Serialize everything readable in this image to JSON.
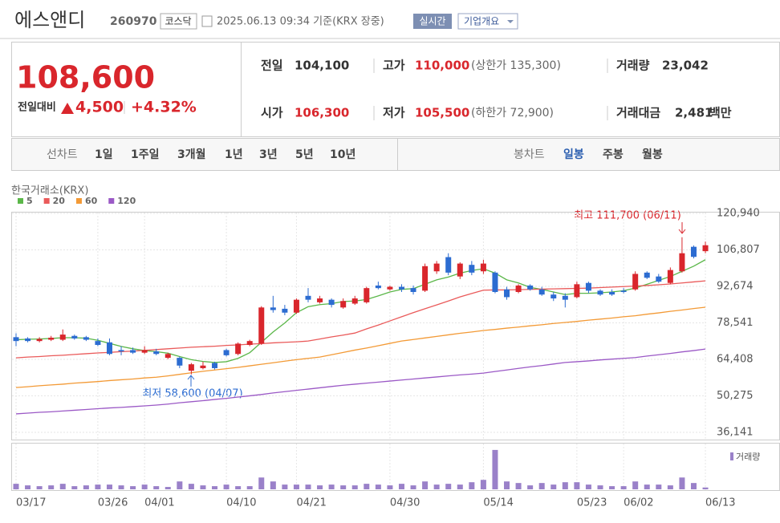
{
  "header": {
    "name": "에스앤디",
    "code": "260970",
    "market": "코스닥",
    "timestamp": "2025.06.13 09:34 기준(KRX 장중)",
    "realtime": "실시간",
    "company_info": "기업개요"
  },
  "quote": {
    "price": "108,600",
    "change_label": "전일대비",
    "change": "4,500",
    "change_pct": "+4.32%",
    "items": [
      {
        "label": "전일",
        "value": "104,100"
      },
      {
        "label": "고가",
        "value": "110,000",
        "note": "(상한가 135,300)"
      },
      {
        "label": "거래량",
        "value": "23,042"
      },
      {
        "label": "시가",
        "value": "106,300"
      },
      {
        "label": "저가",
        "value": "105,500",
        "note": "(하한가 72,900)"
      },
      {
        "label": "거래대금",
        "value": "2,481",
        "unit": "백만"
      }
    ]
  },
  "tabs": {
    "line_chart": "선차트",
    "periods": [
      "1일",
      "1주일",
      "3개월",
      "1년",
      "3년",
      "5년",
      "10년"
    ],
    "candle_chart": "봉차트",
    "candle_periods": [
      "일봉",
      "주봉",
      "월봉"
    ]
  },
  "chart_data": {
    "type": "candlestick",
    "source": "한국거래소(KRX)",
    "categories": [
      "03/17",
      null,
      null,
      null,
      null,
      null,
      null,
      "03/26",
      null,
      null,
      null,
      "04/01",
      null,
      null,
      null,
      null,
      null,
      null,
      "04/10",
      null,
      null,
      null,
      null,
      null,
      "04/21",
      null,
      null,
      null,
      null,
      null,
      null,
      null,
      "04/30",
      null,
      null,
      null,
      null,
      null,
      null,
      null,
      "05/14",
      null,
      null,
      null,
      null,
      null,
      null,
      null,
      "05/23",
      null,
      null,
      null,
      "06/02",
      null,
      null,
      null,
      null,
      null,
      null,
      "06/13"
    ],
    "open": [
      73000,
      72500,
      71500,
      72000,
      72000,
      73500,
      73000,
      71500,
      71000,
      68000,
      68000,
      67000,
      67500,
      65000,
      65000,
      60000,
      61000,
      63000,
      68000,
      66500,
      70000,
      70500,
      84500,
      84000,
      82500,
      89000,
      86500,
      87500,
      84500,
      86000,
      86500,
      93000,
      91500,
      92500,
      92000,
      91000,
      98500,
      104000,
      96500,
      101000,
      98500,
      98000,
      91500,
      90500,
      93000,
      91500,
      89500,
      89000,
      88500,
      94000,
      91000,
      90500,
      91000,
      91500,
      98000,
      96500,
      94000,
      98500,
      108000,
      106300
    ],
    "high": [
      74500,
      73000,
      73000,
      73500,
      76000,
      74000,
      73500,
      72500,
      72500,
      69500,
      69000,
      69500,
      68500,
      67000,
      65500,
      63000,
      63500,
      63500,
      68500,
      71000,
      72000,
      85000,
      89000,
      85500,
      88000,
      92000,
      89000,
      88000,
      88000,
      89000,
      92500,
      94500,
      93000,
      93500,
      93000,
      101500,
      102500,
      105500,
      102000,
      102500,
      103000,
      98500,
      92500,
      93500,
      93500,
      92500,
      90500,
      90000,
      94500,
      94500,
      91500,
      91500,
      92000,
      98500,
      98500,
      97500,
      100000,
      111700,
      108500,
      110000
    ],
    "low": [
      69500,
      71000,
      71000,
      71500,
      71500,
      72000,
      71500,
      69500,
      66000,
      66000,
      66500,
      66500,
      66000,
      64500,
      61000,
      58600,
      60500,
      60500,
      65500,
      66000,
      69500,
      70000,
      82500,
      81500,
      82000,
      86500,
      86000,
      84500,
      84000,
      85500,
      86000,
      91500,
      91000,
      90500,
      89500,
      90500,
      97500,
      97000,
      95500,
      97000,
      97500,
      90000,
      87500,
      90000,
      91000,
      89000,
      87000,
      84500,
      88000,
      90000,
      89000,
      89000,
      90000,
      91000,
      95500,
      94000,
      93500,
      98000,
      103500,
      105500
    ],
    "close": [
      71500,
      71500,
      72300,
      72800,
      74000,
      72500,
      72000,
      70000,
      66500,
      67500,
      67000,
      68000,
      66500,
      66500,
      62000,
      62500,
      62000,
      61000,
      66000,
      70500,
      71500,
      84500,
      83500,
      82500,
      87500,
      87500,
      88000,
      85500,
      87000,
      88000,
      92000,
      92000,
      92500,
      91500,
      90500,
      100500,
      101500,
      98000,
      101500,
      98000,
      101500,
      90500,
      88500,
      93000,
      91500,
      89500,
      88000,
      87500,
      93500,
      91000,
      89500,
      89500,
      90500,
      97500,
      96000,
      94500,
      99000,
      105500,
      104100,
      108600
    ],
    "up_color": "#d9262c",
    "down_color": "#2c6cd1",
    "series": [
      {
        "name": "5",
        "color": "#5bb749",
        "values": [
          72000,
          72200,
          72300,
          72500,
          72800,
          72800,
          72600,
          71800,
          70600,
          69400,
          68500,
          67800,
          67400,
          66800,
          65500,
          64300,
          63600,
          63200,
          63500,
          64800,
          67000,
          71000,
          75000,
          78500,
          82500,
          84800,
          85600,
          86000,
          86800,
          87000,
          87600,
          89000,
          90500,
          91500,
          91800,
          93500,
          95200,
          96300,
          97800,
          98800,
          99500,
          97800,
          95200,
          94000,
          92300,
          91500,
          90500,
          89500,
          90000,
          90000,
          90200,
          90500,
          91000,
          92000,
          93500,
          95000,
          96500,
          98500,
          100500,
          103000
        ]
      },
      {
        "name": "20",
        "color": "#ea5a5a",
        "values": [
          65000,
          65300,
          65500,
          65800,
          66000,
          66300,
          66600,
          66900,
          67100,
          67400,
          67600,
          67900,
          68200,
          68500,
          68800,
          69100,
          69300,
          69500,
          69800,
          70000,
          70300,
          70500,
          70800,
          71000,
          71200,
          71500,
          72300,
          73100,
          73800,
          74600,
          76200,
          77700,
          79300,
          80900,
          82500,
          84000,
          85500,
          87000,
          88600,
          89900,
          91200,
          91300,
          91300,
          91400,
          91500,
          91600,
          91700,
          91800,
          91900,
          92000,
          92200,
          92400,
          92600,
          92800,
          93000,
          93300,
          93600,
          94000,
          94400,
          94800
        ]
      },
      {
        "name": "60",
        "color": "#f39a36",
        "values": [
          53500,
          53800,
          54200,
          54500,
          54800,
          55200,
          55500,
          55800,
          56200,
          56500,
          56800,
          57200,
          57500,
          58000,
          58600,
          59200,
          59800,
          60300,
          60800,
          61300,
          61900,
          62500,
          63100,
          63700,
          64300,
          64800,
          65300,
          66200,
          67100,
          68000,
          68800,
          69700,
          70600,
          71500,
          72100,
          72700,
          73300,
          73900,
          74500,
          75000,
          75600,
          76000,
          76500,
          76900,
          77400,
          77800,
          78300,
          78700,
          79100,
          79600,
          80000,
          80400,
          80900,
          81300,
          81900,
          82400,
          83000,
          83500,
          84100,
          84600
        ]
      },
      {
        "name": "120",
        "color": "#9b59c6",
        "values": [
          43300,
          43600,
          43900,
          44100,
          44400,
          44700,
          45000,
          45300,
          45600,
          45800,
          46100,
          46400,
          46700,
          47100,
          47600,
          48000,
          48400,
          48900,
          49300,
          49800,
          50300,
          50800,
          51400,
          51900,
          52400,
          52900,
          53400,
          53900,
          54400,
          54800,
          55200,
          55600,
          56000,
          56400,
          56800,
          57200,
          57600,
          58000,
          58400,
          58700,
          59100,
          59700,
          60300,
          60900,
          61500,
          62000,
          62600,
          63200,
          63500,
          63800,
          64200,
          64500,
          64800,
          65100,
          65700,
          66200,
          66700,
          67300,
          67800,
          68400
        ]
      }
    ],
    "volume": {
      "name": "거래량",
      "color": "#9a81c9",
      "values": [
        70000,
        50000,
        40000,
        50000,
        70000,
        40000,
        50000,
        60000,
        60000,
        50000,
        40000,
        60000,
        40000,
        30000,
        100000,
        70000,
        50000,
        40000,
        60000,
        40000,
        40000,
        150000,
        100000,
        60000,
        60000,
        60000,
        50000,
        60000,
        50000,
        50000,
        70000,
        60000,
        50000,
        70000,
        50000,
        100000,
        60000,
        70000,
        60000,
        90000,
        120000,
        500000,
        100000,
        80000,
        50000,
        80000,
        60000,
        90000,
        90000,
        60000,
        50000,
        40000,
        40000,
        100000,
        60000,
        60000,
        50000,
        150000,
        80000,
        23042
      ]
    },
    "volume_ylim": [
      0,
      550000
    ],
    "ylim": [
      36141,
      120940
    ],
    "yticks": [
      {
        "value": 120940,
        "label": "120,940"
      },
      {
        "value": 106807,
        "label": "106,807"
      },
      {
        "value": 92674,
        "label": "92,674"
      },
      {
        "value": 78541,
        "label": "78,541"
      },
      {
        "value": 64408,
        "label": "64,408"
      },
      {
        "value": 50275,
        "label": "50,275"
      },
      {
        "value": 36141,
        "label": "36,141"
      }
    ],
    "grid": true,
    "legend": "top-left",
    "annotations": [
      {
        "text": "최고 111,700 (06/11)",
        "color": "#d9262c"
      },
      {
        "text": "최저 58,600 (04/07)",
        "color": "#2c6cd1"
      }
    ]
  }
}
